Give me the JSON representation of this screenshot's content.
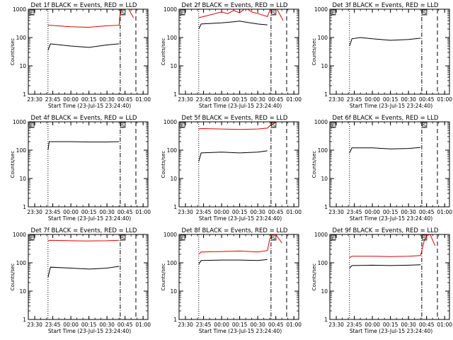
{
  "chart_data": [
    {
      "type": "line",
      "title": "Det 1f BLACK = Events, RED = LLD",
      "xlabel": "Start Time (23-Jul-15 23:24:40)",
      "ylabel": "Counts/sec",
      "yscale": "log",
      "ylim": [
        1,
        1000
      ],
      "y_ticks": [
        "1",
        "10",
        "100",
        "1000"
      ],
      "x_ticks": [
        "23:30",
        "23:45",
        "00:00",
        "00:15",
        "00:30",
        "00:45",
        "01:00"
      ],
      "vlines": [
        {
          "style": "dotted",
          "x": "23:41"
        },
        {
          "style": "dash-dot",
          "x": "00:41"
        },
        {
          "style": "dashed",
          "x": "00:54"
        }
      ],
      "flags": [
        "E",
        "S"
      ],
      "series": [
        {
          "color": "#000000",
          "x": [
            "23:41",
            "23:43",
            "00:00",
            "00:15",
            "00:30",
            "00:40"
          ],
          "values": [
            35,
            60,
            50,
            45,
            55,
            60
          ]
        },
        {
          "color": "#e00000",
          "x": [
            "23:41",
            "23:43",
            "00:00",
            "00:15",
            "00:30",
            "00:40",
            "00:41",
            "00:43",
            "00:48",
            "00:52"
          ],
          "values": [
            270,
            270,
            240,
            230,
            260,
            270,
            800,
            1000,
            1000,
            500
          ]
        }
      ]
    },
    {
      "type": "line",
      "title": "Det 2f BLACK = Events, RED = LLD",
      "xlabel": "Start Time (23-Jul-15 23:24:40)",
      "ylabel": "Counts/sec",
      "yscale": "log",
      "ylim": [
        1,
        1000
      ],
      "y_ticks": [
        "1",
        "10",
        "100",
        "1000"
      ],
      "x_ticks": [
        "23:30",
        "23:45",
        "00:00",
        "00:15",
        "00:30",
        "00:45",
        "01:00"
      ],
      "vlines": [
        {
          "style": "dotted",
          "x": "23:41"
        },
        {
          "style": "dash-dot",
          "x": "00:41"
        },
        {
          "style": "dashed",
          "x": "00:54"
        }
      ],
      "flags": [
        "E",
        "S"
      ],
      "series": [
        {
          "color": "#000000",
          "x": [
            "23:41",
            "23:43",
            "00:00",
            "00:10",
            "00:15",
            "00:20",
            "00:30",
            "00:38"
          ],
          "values": [
            200,
            300,
            330,
            360,
            380,
            350,
            300,
            280
          ]
        },
        {
          "color": "#e00000",
          "x": [
            "23:41",
            "23:45",
            "00:00",
            "00:05",
            "00:10",
            "00:15",
            "00:20",
            "00:25",
            "00:30",
            "00:38",
            "00:40",
            "00:42",
            "00:46",
            "00:51"
          ],
          "values": [
            500,
            550,
            800,
            700,
            900,
            750,
            1100,
            800,
            700,
            550,
            900,
            1000,
            1000,
            400
          ]
        }
      ]
    },
    {
      "type": "line",
      "title": "Det 3f BLACK = Events, RED = LLD",
      "xlabel": "Start Time (23-Jul-15 23:24:40)",
      "ylabel": "Counts/sec",
      "yscale": "log",
      "ylim": [
        1,
        1000
      ],
      "y_ticks": [
        "1",
        "10",
        "100",
        "1000"
      ],
      "x_ticks": [
        "23:30",
        "23:45",
        "00:00",
        "00:15",
        "00:30",
        "00:45",
        "01:00"
      ],
      "vlines": [
        {
          "style": "dotted",
          "x": "23:41"
        },
        {
          "style": "dash-dot",
          "x": "00:41"
        },
        {
          "style": "dashed",
          "x": "00:54"
        }
      ],
      "flags": [
        "E",
        "S"
      ],
      "series": [
        {
          "color": "#000000",
          "x": [
            "23:41",
            "23:43",
            "23:50",
            "00:00",
            "00:15",
            "00:30",
            "00:40"
          ],
          "values": [
            50,
            90,
            100,
            90,
            80,
            85,
            95
          ]
        }
      ]
    },
    {
      "type": "line",
      "title": "Det 4f BLACK = Events, RED = LLD",
      "xlabel": "Start Time (23-Jul-15 23:24:40)",
      "ylabel": "Counts/sec",
      "yscale": "log",
      "ylim": [
        1,
        1000
      ],
      "y_ticks": [
        "1",
        "10",
        "100",
        "1000"
      ],
      "x_ticks": [
        "23:30",
        "23:45",
        "00:00",
        "00:15",
        "00:30",
        "00:45",
        "01:00"
      ],
      "vlines": [
        {
          "style": "dotted",
          "x": "23:41"
        },
        {
          "style": "dash-dot",
          "x": "00:41"
        },
        {
          "style": "dashed",
          "x": "00:54"
        }
      ],
      "flags": [
        "E",
        "S"
      ],
      "series": [
        {
          "color": "#000000",
          "x": [
            "23:41",
            "23:42",
            "00:00",
            "00:15",
            "00:30",
            "00:40"
          ],
          "values": [
            100,
            200,
            200,
            195,
            195,
            200
          ]
        }
      ]
    },
    {
      "type": "line",
      "title": "Det 5f BLACK = Events, RED = LLD",
      "xlabel": "Start Time (23-Jul-15 23:24:40)",
      "ylabel": "Counts/sec",
      "yscale": "log",
      "ylim": [
        1,
        1000
      ],
      "y_ticks": [
        "1",
        "10",
        "100",
        "1000"
      ],
      "x_ticks": [
        "23:30",
        "23:45",
        "00:00",
        "00:15",
        "00:30",
        "00:45",
        "01:00"
      ],
      "vlines": [
        {
          "style": "dotted",
          "x": "23:41"
        },
        {
          "style": "dash-dot",
          "x": "00:41"
        },
        {
          "style": "dashed",
          "x": "00:54"
        }
      ],
      "flags": [
        "E",
        "S"
      ],
      "series": [
        {
          "color": "#000000",
          "x": [
            "23:41",
            "23:43",
            "00:00",
            "00:15",
            "00:30",
            "00:38"
          ],
          "values": [
            40,
            80,
            85,
            80,
            85,
            95
          ]
        },
        {
          "color": "#e00000",
          "x": [
            "23:41",
            "23:43",
            "00:00",
            "00:15",
            "00:30",
            "00:38",
            "00:41",
            "00:44"
          ],
          "values": [
            550,
            580,
            560,
            540,
            560,
            600,
            800,
            900
          ]
        }
      ]
    },
    {
      "type": "line",
      "title": "Det 6f BLACK = Events, RED = LLD",
      "xlabel": "Start Time (23-Jul-15 23:24:40)",
      "ylabel": "Counts/sec",
      "yscale": "log",
      "ylim": [
        1,
        1000
      ],
      "y_ticks": [
        "1",
        "10",
        "100",
        "1000"
      ],
      "x_ticks": [
        "23:30",
        "23:45",
        "00:00",
        "00:15",
        "00:30",
        "00:45",
        "01:00"
      ],
      "vlines": [
        {
          "style": "dotted",
          "x": "23:41"
        },
        {
          "style": "dash-dot",
          "x": "00:41"
        },
        {
          "style": "dashed",
          "x": "00:54"
        }
      ],
      "flags": [
        "E",
        "S"
      ],
      "series": [
        {
          "color": "#000000",
          "x": [
            "23:41",
            "23:43",
            "00:00",
            "00:15",
            "00:30",
            "00:40"
          ],
          "values": [
            80,
            120,
            120,
            110,
            115,
            125
          ]
        }
      ]
    },
    {
      "type": "line",
      "title": "Det 7f BLACK = Events, RED = LLD",
      "xlabel": "Start Time (23-Jul-15 23:24:40)",
      "ylabel": "Counts/sec",
      "yscale": "log",
      "ylim": [
        1,
        1000
      ],
      "y_ticks": [
        "1",
        "10",
        "100",
        "1000"
      ],
      "x_ticks": [
        "23:30",
        "23:45",
        "00:00",
        "00:15",
        "00:30",
        "00:45",
        "01:00"
      ],
      "vlines": [
        {
          "style": "dotted",
          "x": "23:41"
        },
        {
          "style": "dash-dot",
          "x": "00:41"
        },
        {
          "style": "dashed",
          "x": "00:54"
        }
      ],
      "flags": [
        "E",
        "S"
      ],
      "series": [
        {
          "color": "#000000",
          "x": [
            "23:41",
            "23:43",
            "00:00",
            "00:15",
            "00:30",
            "00:40"
          ],
          "values": [
            30,
            70,
            65,
            60,
            65,
            75
          ]
        },
        {
          "color": "#e00000",
          "x": [
            "23:41",
            "23:43",
            "00:00",
            "00:15",
            "00:30",
            "00:40"
          ],
          "values": [
            600,
            620,
            600,
            590,
            600,
            620
          ]
        }
      ]
    },
    {
      "type": "line",
      "title": "Det 8f BLACK = Events, RED = LLD",
      "xlabel": "Start Time (23-Jul-15 23:24:40)",
      "ylabel": "Counts/sec",
      "yscale": "log",
      "ylim": [
        1,
        1000
      ],
      "y_ticks": [
        "1",
        "10",
        "100",
        "1000"
      ],
      "x_ticks": [
        "23:30",
        "23:45",
        "00:00",
        "00:15",
        "00:30",
        "00:45",
        "01:00"
      ],
      "vlines": [
        {
          "style": "dotted",
          "x": "23:41"
        },
        {
          "style": "dash-dot",
          "x": "00:41"
        },
        {
          "style": "dashed",
          "x": "00:54"
        }
      ],
      "flags": [
        "E",
        "S"
      ],
      "series": [
        {
          "color": "#000000",
          "x": [
            "23:41",
            "23:43",
            "00:00",
            "00:15",
            "00:30",
            "00:38"
          ],
          "values": [
            90,
            120,
            125,
            125,
            120,
            130
          ]
        },
        {
          "color": "#e00000",
          "x": [
            "23:41",
            "23:43",
            "00:00",
            "00:15",
            "00:30",
            "00:38",
            "00:40",
            "00:42",
            "00:45",
            "00:50"
          ],
          "values": [
            200,
            240,
            250,
            260,
            240,
            270,
            700,
            1000,
            1000,
            500
          ]
        }
      ]
    },
    {
      "type": "line",
      "title": "Det 9f BLACK = Events, RED = LLD",
      "xlabel": "Start Time (23-Jul-15 23:24:40)",
      "ylabel": "Counts/sec",
      "yscale": "log",
      "ylim": [
        1,
        1000
      ],
      "y_ticks": [
        "1",
        "10",
        "100",
        "1000"
      ],
      "x_ticks": [
        "23:30",
        "23:45",
        "00:00",
        "00:15",
        "00:30",
        "00:45",
        "01:00"
      ],
      "vlines": [
        {
          "style": "dotted",
          "x": "23:41"
        },
        {
          "style": "dash-dot",
          "x": "00:41"
        },
        {
          "style": "dashed",
          "x": "00:54"
        }
      ],
      "flags": [
        "E",
        "S"
      ],
      "series": [
        {
          "color": "#000000",
          "x": [
            "23:41",
            "23:43",
            "00:00",
            "00:15",
            "00:30",
            "00:40"
          ],
          "values": [
            65,
            80,
            82,
            80,
            82,
            85
          ]
        },
        {
          "color": "#e00000",
          "x": [
            "23:41",
            "23:43",
            "00:00",
            "00:15",
            "00:30",
            "00:40",
            "00:43",
            "00:45",
            "00:48",
            "00:52"
          ],
          "values": [
            150,
            170,
            170,
            165,
            170,
            180,
            600,
            900,
            1000,
            400
          ]
        }
      ]
    }
  ]
}
